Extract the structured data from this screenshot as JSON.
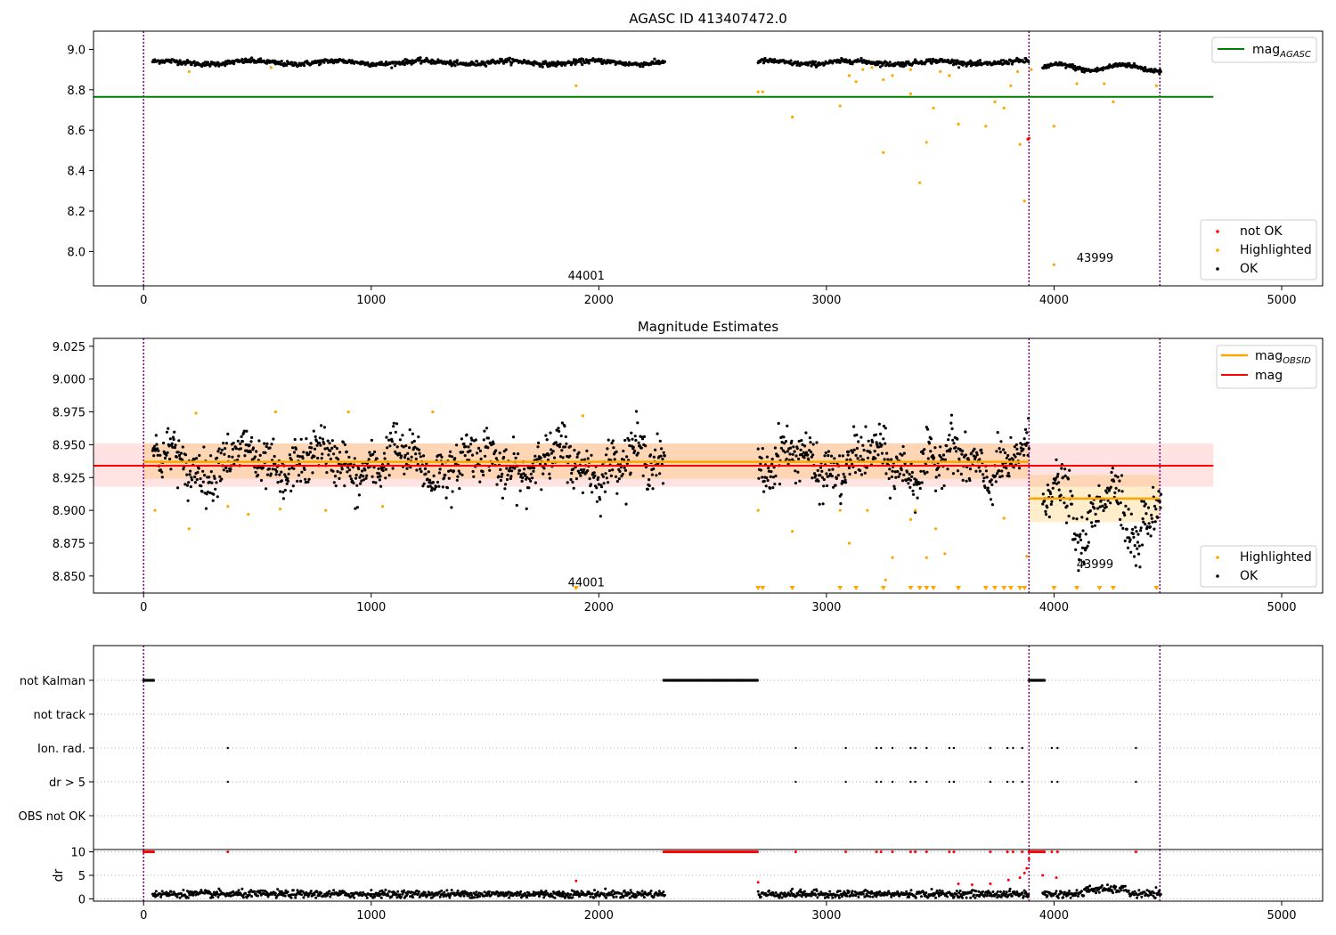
{
  "chart_data": [
    {
      "type": "scatter",
      "title": "AGASC ID 413407472.0",
      "xlim": [
        -220,
        5180
      ],
      "ylim": [
        7.83,
        9.09
      ],
      "yticks": [
        "8.0",
        "8.2",
        "8.4",
        "8.6",
        "8.8",
        "9.0"
      ],
      "xticks": [
        "0",
        "1000",
        "2000",
        "3000",
        "4000",
        "5000"
      ],
      "obsid_boundaries": [
        0,
        3890,
        4465
      ],
      "obsid_labels": [
        {
          "text": "44001",
          "x": 1945,
          "y": 7.86
        },
        {
          "text": "43999",
          "x": 4180,
          "y": 7.95
        }
      ],
      "reference_line": {
        "name": "mag_AGASC",
        "value": 8.765,
        "x_range": [
          -220,
          4700
        ],
        "color": "#008000"
      },
      "series": [
        {
          "name": "not OK",
          "color": "#ff0000"
        },
        {
          "name": "Highlighted",
          "color": "#ffa500"
        },
        {
          "name": "OK",
          "color": "#000000"
        }
      ],
      "legend_top": {
        "label_main": "mag",
        "label_sub": "AGASC"
      },
      "legend": "lower right"
    },
    {
      "type": "scatter",
      "title": "Magnitude Estimates",
      "xlim": [
        -220,
        5180
      ],
      "ylim": [
        8.837,
        9.031
      ],
      "yticks": [
        "8.850",
        "8.875",
        "8.900",
        "8.925",
        "8.950",
        "8.975",
        "9.000",
        "9.025"
      ],
      "xticks": [
        "0",
        "1000",
        "2000",
        "3000",
        "4000",
        "5000"
      ],
      "obsid_boundaries": [
        0,
        3890,
        4465
      ],
      "obsid_labels": [
        {
          "text": "44001",
          "x": 1945,
          "y": 8.842
        },
        {
          "text": "43999",
          "x": 4180,
          "y": 8.856
        }
      ],
      "mag_line": {
        "name": "mag",
        "value": 8.934,
        "band": [
          8.918,
          8.951
        ],
        "x_range": [
          -220,
          4700
        ],
        "color": "#ff0000"
      },
      "mag_obsid": [
        {
          "x_range": [
            0,
            3890
          ],
          "value": 8.937,
          "band": [
            8.924,
            8.951
          ]
        },
        {
          "x_range": [
            3890,
            4465
          ],
          "value": 8.909,
          "band": [
            8.891,
            8.927
          ]
        }
      ],
      "series": [
        {
          "name": "Highlighted",
          "color": "#ffa500"
        },
        {
          "name": "OK",
          "color": "#000000"
        }
      ],
      "legend_top": {
        "label_main1": "mag",
        "label_sub1": "OBSID",
        "label2": "mag"
      },
      "legend": "lower right"
    },
    {
      "type": "scatter",
      "title": "",
      "xlim": [
        -220,
        5180
      ],
      "flag_rows": [
        "not Kalman",
        "not track",
        "Ion. rad.",
        "dr > 5",
        "OBS not OK"
      ],
      "obsid_boundaries": [
        0,
        3890,
        4465
      ],
      "not_kalman_ranges": [
        [
          0,
          45
        ],
        [
          2285,
          2700
        ],
        [
          3890,
          3960
        ]
      ],
      "ion_rad_x": [
        370,
        2865,
        3085,
        3220,
        3240,
        3290,
        3370,
        3390,
        3440,
        3540,
        3560,
        3720,
        3795,
        3820,
        3860,
        3990,
        4015,
        4360
      ],
      "dr_gt_5_x": [
        370,
        2865,
        3085,
        3220,
        3240,
        3290,
        3370,
        3390,
        3440,
        3540,
        3560,
        3720,
        3795,
        3820,
        3860,
        3990,
        4015,
        4360
      ],
      "dr_ylim": [
        -0.5,
        10.5
      ],
      "dr_yticks": [
        "0",
        "5",
        "10"
      ],
      "dr_ylabel": "dr",
      "xticks": [
        "0",
        "1000",
        "2000",
        "3000",
        "4000",
        "5000"
      ]
    }
  ]
}
